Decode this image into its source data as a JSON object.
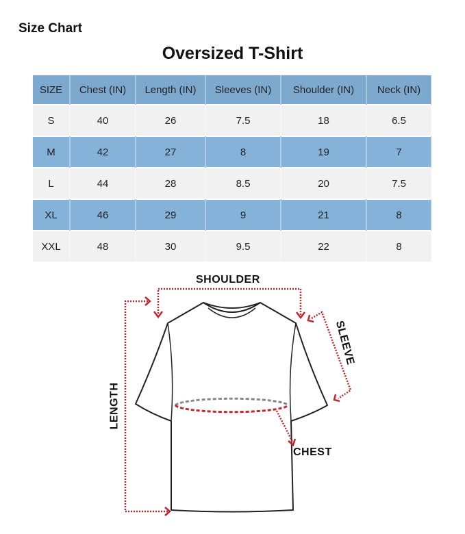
{
  "header": {
    "label": "Size Chart",
    "title": "Oversized T-Shirt"
  },
  "table": {
    "columns": [
      "SIZE",
      "Chest (IN)",
      "Length (IN)",
      "Sleeves (IN)",
      "Shoulder (IN)",
      "Neck (IN)"
    ],
    "rows": [
      [
        "S",
        "40",
        "26",
        "7.5",
        "18",
        "6.5"
      ],
      [
        "M",
        "42",
        "27",
        "8",
        "19",
        "7"
      ],
      [
        "L",
        "44",
        "28",
        "8.5",
        "20",
        "7.5"
      ],
      [
        "XL",
        "46",
        "29",
        "9",
        "21",
        "8"
      ],
      [
        "XXL",
        "48",
        "30",
        "9.5",
        "22",
        "8"
      ]
    ],
    "colors": {
      "header": "#7ea9cf",
      "blue_row": "#85b2d9",
      "light_row": "#f1f1f1"
    }
  },
  "diagram": {
    "labels": {
      "shoulder": "SHOULDER",
      "sleeve": "SLEEVE",
      "length": "LENGTH",
      "chest": "CHEST"
    },
    "arrow_color": "#c0262c"
  }
}
